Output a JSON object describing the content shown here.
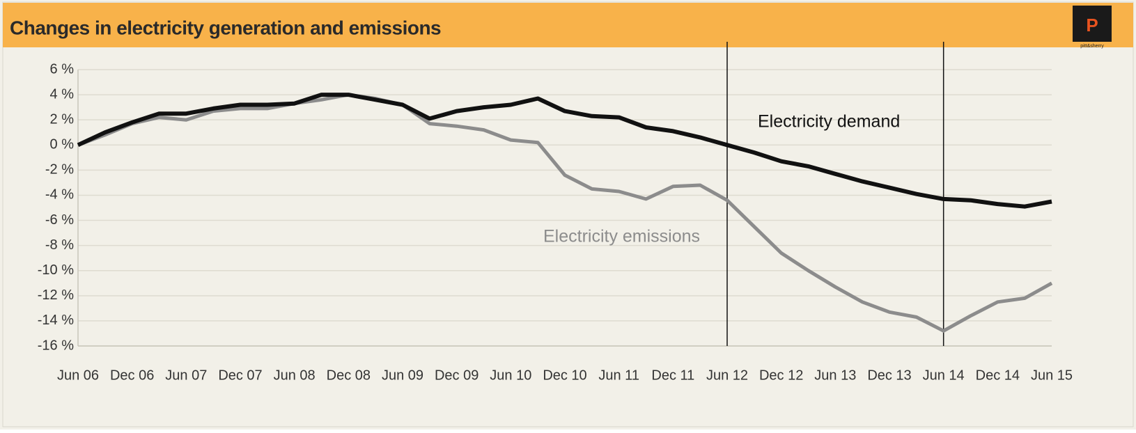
{
  "chart_data": {
    "type": "line",
    "title": "Changes in electricity generation and emissions",
    "logo": "pitt&sherry",
    "categories": [
      "Jun 06",
      null,
      "Dec 06",
      null,
      "Jun 07",
      null,
      "Dec 07",
      null,
      "Jun 08",
      null,
      "Dec 08",
      null,
      "Jun 09",
      null,
      "Dec 09",
      null,
      "Jun 10",
      null,
      "Dec 10",
      null,
      "Jun 11",
      null,
      "Dec 11",
      null,
      "Jun 12",
      null,
      "Dec 12",
      null,
      "Jun 13",
      null,
      "Dec 13",
      null,
      "Jun 14",
      null,
      "Dec 14",
      null,
      "Jun 15"
    ],
    "series": [
      {
        "name": "Electricity demand",
        "color": "#111111",
        "values": [
          0,
          1.0,
          1.8,
          2.5,
          2.5,
          2.9,
          3.2,
          3.2,
          3.3,
          4.0,
          4.0,
          3.6,
          3.2,
          2.1,
          2.7,
          3.0,
          3.2,
          3.7,
          2.7,
          2.3,
          2.2,
          1.4,
          1.1,
          0.6,
          0.0,
          -0.6,
          -1.3,
          -1.7,
          -2.3,
          -2.9,
          -3.4,
          -3.9,
          -4.3,
          -4.4,
          -4.7,
          -4.9,
          -4.5
        ]
      },
      {
        "name": "Electricity emissions",
        "color": "#8c8c8c",
        "values": [
          0,
          0.8,
          1.7,
          2.2,
          2.0,
          2.7,
          2.9,
          2.9,
          3.3,
          3.6,
          4.0,
          3.7,
          3.2,
          1.7,
          1.5,
          1.2,
          0.4,
          0.2,
          -2.4,
          -3.5,
          -3.7,
          -4.3,
          -3.3,
          -3.2,
          -4.4,
          -6.5,
          -8.6,
          -10.0,
          -11.3,
          -12.5,
          -13.3,
          -13.7,
          -14.8,
          -13.6,
          -12.5,
          -12.2,
          -11.0
        ]
      }
    ],
    "vlines": [
      24,
      32
    ],
    "ylim": [
      -16,
      6
    ],
    "yticks": [
      {
        "value": 6,
        "label": "6 %"
      },
      {
        "value": 4,
        "label": "4 %"
      },
      {
        "value": 2,
        "label": "2 %"
      },
      {
        "value": 0,
        "label": "0 %"
      },
      {
        "value": -2,
        "label": "-2 %"
      },
      {
        "value": -4,
        "label": "-4 %"
      },
      {
        "value": -6,
        "label": "-6 %"
      },
      {
        "value": -8,
        "label": "-8 %"
      },
      {
        "value": -10,
        "label": "-10 %"
      },
      {
        "value": -12,
        "label": "-12 %"
      },
      {
        "value": -14,
        "label": "-14 %"
      },
      {
        "value": -16,
        "label": "-16 %"
      }
    ],
    "grid": true
  }
}
